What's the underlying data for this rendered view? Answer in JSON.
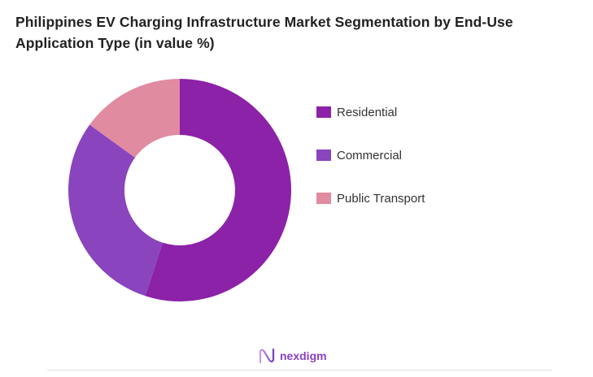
{
  "chart_data": {
    "type": "pie",
    "variant": "donut",
    "title": "Philippines EV Charging Infrastructure Market Segmentation by End-Use Application Type (in value %)",
    "categories": [
      "Residential",
      "Commercial",
      "Public Transport"
    ],
    "values": [
      55,
      30,
      15
    ],
    "colors": [
      "#8b22a8",
      "#8a44be",
      "#e08ba0"
    ],
    "legend_position": "right"
  },
  "brand": {
    "name": "nexdigm",
    "color": "#8b3fc4"
  }
}
